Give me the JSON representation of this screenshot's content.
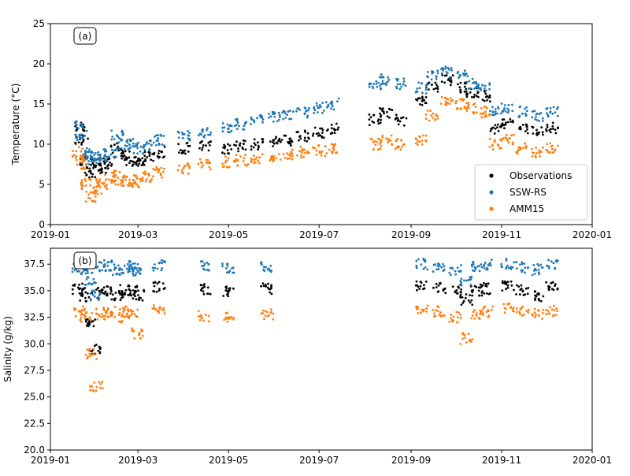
{
  "chart_data": [
    {
      "type": "scatter",
      "panel_label": "(a)",
      "ylabel": "Temperature (°C)",
      "xlabel": "",
      "xlim": [
        "2019-01-01",
        "2020-01-01"
      ],
      "ylim": [
        0,
        25
      ],
      "x_ticks": [
        "2019-01",
        "2019-03",
        "2019-05",
        "2019-07",
        "2019-09",
        "2019-11",
        "2020-01"
      ],
      "y_ticks": [
        0,
        5,
        10,
        15,
        20,
        25
      ],
      "legend": {
        "position": "lower-right",
        "entries": [
          "Observations",
          "SSW-RS",
          "AMM15"
        ]
      },
      "grid": false,
      "series": [
        {
          "name": "Observations",
          "color": "#000000",
          "points": [
            [
              "2019-01-20",
              12.0
            ],
            [
              "2019-01-22",
              10.5
            ],
            [
              "2019-01-25",
              8.0
            ],
            [
              "2019-01-28",
              6.5
            ],
            [
              "2019-02-01",
              7.5
            ],
            [
              "2019-02-05",
              7.0
            ],
            [
              "2019-02-10",
              8.0
            ],
            [
              "2019-02-15",
              9.5
            ],
            [
              "2019-02-20",
              8.5
            ],
            [
              "2019-02-25",
              8.0
            ],
            [
              "2019-03-01",
              7.8
            ],
            [
              "2019-03-08",
              8.5
            ],
            [
              "2019-03-15",
              9.0
            ],
            [
              "2019-04-01",
              9.5
            ],
            [
              "2019-04-15",
              9.8
            ],
            [
              "2019-05-01",
              9.5
            ],
            [
              "2019-05-10",
              9.8
            ],
            [
              "2019-05-20",
              10.0
            ],
            [
              "2019-06-01",
              10.3
            ],
            [
              "2019-06-10",
              10.5
            ],
            [
              "2019-06-20",
              11.0
            ],
            [
              "2019-07-01",
              11.5
            ],
            [
              "2019-07-10",
              12.0
            ],
            [
              "2019-08-08",
              13.0
            ],
            [
              "2019-08-15",
              14.0
            ],
            [
              "2019-08-25",
              13.0
            ],
            [
              "2019-09-08",
              15.5
            ],
            [
              "2019-09-15",
              17.0
            ],
            [
              "2019-09-25",
              18.0
            ],
            [
              "2019-10-05",
              17.0
            ],
            [
              "2019-10-12",
              16.5
            ],
            [
              "2019-10-20",
              16.0
            ],
            [
              "2019-10-28",
              12.0
            ],
            [
              "2019-11-05",
              12.5
            ],
            [
              "2019-11-15",
              12.0
            ],
            [
              "2019-11-25",
              11.5
            ],
            [
              "2019-12-05",
              12.0
            ]
          ]
        },
        {
          "name": "SSW-RS",
          "color": "#1f77b4",
          "points": [
            [
              "2019-01-20",
              12.5
            ],
            [
              "2019-01-22",
              11.0
            ],
            [
              "2019-01-25",
              9.0
            ],
            [
              "2019-01-28",
              8.0
            ],
            [
              "2019-02-01",
              8.5
            ],
            [
              "2019-02-05",
              8.5
            ],
            [
              "2019-02-10",
              9.0
            ],
            [
              "2019-02-15",
              11.0
            ],
            [
              "2019-02-20",
              10.0
            ],
            [
              "2019-02-25",
              10.0
            ],
            [
              "2019-03-01",
              9.5
            ],
            [
              "2019-03-08",
              9.8
            ],
            [
              "2019-03-15",
              10.5
            ],
            [
              "2019-04-01",
              11.0
            ],
            [
              "2019-04-15",
              11.5
            ],
            [
              "2019-05-01",
              12.0
            ],
            [
              "2019-05-10",
              12.5
            ],
            [
              "2019-05-20",
              13.0
            ],
            [
              "2019-06-01",
              13.5
            ],
            [
              "2019-06-10",
              13.8
            ],
            [
              "2019-06-20",
              14.0
            ],
            [
              "2019-07-01",
              14.5
            ],
            [
              "2019-07-10",
              15.0
            ],
            [
              "2019-08-08",
              17.5
            ],
            [
              "2019-08-15",
              18.0
            ],
            [
              "2019-08-25",
              17.5
            ],
            [
              "2019-09-08",
              17.0
            ],
            [
              "2019-09-15",
              18.5
            ],
            [
              "2019-09-25",
              19.0
            ],
            [
              "2019-10-05",
              18.5
            ],
            [
              "2019-10-12",
              17.5
            ],
            [
              "2019-10-20",
              17.0
            ],
            [
              "2019-10-28",
              14.0
            ],
            [
              "2019-11-05",
              14.5
            ],
            [
              "2019-11-15",
              14.0
            ],
            [
              "2019-11-25",
              13.5
            ],
            [
              "2019-12-05",
              14.0
            ]
          ]
        },
        {
          "name": "AMM15",
          "color": "#ff7f0e",
          "points": [
            [
              "2019-01-20",
              9.0
            ],
            [
              "2019-01-22",
              7.5
            ],
            [
              "2019-01-25",
              5.0
            ],
            [
              "2019-01-28",
              3.5
            ],
            [
              "2019-02-01",
              4.5
            ],
            [
              "2019-02-05",
              5.0
            ],
            [
              "2019-02-10",
              5.5
            ],
            [
              "2019-02-15",
              6.0
            ],
            [
              "2019-02-20",
              5.5
            ],
            [
              "2019-02-25",
              5.5
            ],
            [
              "2019-03-01",
              5.3
            ],
            [
              "2019-03-08",
              6.0
            ],
            [
              "2019-03-15",
              6.5
            ],
            [
              "2019-04-01",
              7.0
            ],
            [
              "2019-04-15",
              7.5
            ],
            [
              "2019-05-01",
              7.8
            ],
            [
              "2019-05-10",
              8.0
            ],
            [
              "2019-05-20",
              8.3
            ],
            [
              "2019-06-01",
              8.5
            ],
            [
              "2019-06-10",
              8.8
            ],
            [
              "2019-06-20",
              9.0
            ],
            [
              "2019-07-01",
              9.2
            ],
            [
              "2019-07-10",
              9.5
            ],
            [
              "2019-08-08",
              10.0
            ],
            [
              "2019-08-15",
              10.5
            ],
            [
              "2019-08-25",
              10.0
            ],
            [
              "2019-09-08",
              10.5
            ],
            [
              "2019-09-15",
              13.5
            ],
            [
              "2019-09-25",
              15.5
            ],
            [
              "2019-10-05",
              15.0
            ],
            [
              "2019-10-12",
              14.5
            ],
            [
              "2019-10-20",
              14.0
            ],
            [
              "2019-10-28",
              10.0
            ],
            [
              "2019-11-05",
              10.5
            ],
            [
              "2019-11-15",
              9.5
            ],
            [
              "2019-11-25",
              9.0
            ],
            [
              "2019-12-05",
              9.5
            ]
          ]
        }
      ]
    },
    {
      "type": "scatter",
      "panel_label": "(b)",
      "ylabel": "Salinity (g/kg)",
      "xlabel": "",
      "xlim": [
        "2019-01-01",
        "2020-01-01"
      ],
      "ylim": [
        20.0,
        39.0
      ],
      "x_ticks": [
        "2019-01",
        "2019-03",
        "2019-05",
        "2019-07",
        "2019-09",
        "2019-11",
        "2020-01"
      ],
      "y_ticks": [
        "20.0",
        "22.5",
        "25.0",
        "27.5",
        "30.0",
        "32.5",
        "35.0",
        "37.5"
      ],
      "grid": false,
      "series": [
        {
          "name": "Observations",
          "color": "#000000",
          "points": [
            [
              "2019-01-20",
              35.2
            ],
            [
              "2019-01-25",
              34.5
            ],
            [
              "2019-01-28",
              32.0
            ],
            [
              "2019-02-01",
              29.5
            ],
            [
              "2019-02-05",
              34.8
            ],
            [
              "2019-02-10",
              35.0
            ],
            [
              "2019-02-15",
              34.5
            ],
            [
              "2019-02-20",
              35.1
            ],
            [
              "2019-02-25",
              35.0
            ],
            [
              "2019-03-01",
              34.6
            ],
            [
              "2019-03-15",
              35.4
            ],
            [
              "2019-04-15",
              35.2
            ],
            [
              "2019-05-01",
              35.0
            ],
            [
              "2019-05-27",
              35.2
            ],
            [
              "2019-09-08",
              35.4
            ],
            [
              "2019-09-20",
              35.3
            ],
            [
              "2019-10-01",
              35.0
            ],
            [
              "2019-10-08",
              34.2
            ],
            [
              "2019-10-15",
              35.0
            ],
            [
              "2019-10-22",
              35.2
            ],
            [
              "2019-11-05",
              35.5
            ],
            [
              "2019-11-15",
              35.0
            ],
            [
              "2019-11-25",
              34.5
            ],
            [
              "2019-12-05",
              35.3
            ]
          ]
        },
        {
          "name": "SSW-RS",
          "color": "#1f77b4",
          "points": [
            [
              "2019-01-20",
              37.2
            ],
            [
              "2019-01-25",
              37.0
            ],
            [
              "2019-01-28",
              36.0
            ],
            [
              "2019-02-01",
              34.5
            ],
            [
              "2019-02-05",
              37.3
            ],
            [
              "2019-02-10",
              37.4
            ],
            [
              "2019-02-15",
              37.0
            ],
            [
              "2019-02-20",
              37.3
            ],
            [
              "2019-02-25",
              37.1
            ],
            [
              "2019-03-01",
              36.8
            ],
            [
              "2019-03-15",
              37.4
            ],
            [
              "2019-04-15",
              37.3
            ],
            [
              "2019-05-01",
              37.2
            ],
            [
              "2019-05-27",
              37.2
            ],
            [
              "2019-09-08",
              37.5
            ],
            [
              "2019-09-20",
              37.3
            ],
            [
              "2019-10-01",
              37.0
            ],
            [
              "2019-10-08",
              36.0
            ],
            [
              "2019-10-15",
              37.2
            ],
            [
              "2019-10-22",
              37.4
            ],
            [
              "2019-11-05",
              37.5
            ],
            [
              "2019-11-15",
              37.2
            ],
            [
              "2019-11-25",
              37.0
            ],
            [
              "2019-12-05",
              37.4
            ]
          ]
        },
        {
          "name": "AMM15",
          "color": "#ff7f0e",
          "points": [
            [
              "2019-01-20",
              33.0
            ],
            [
              "2019-01-25",
              32.5
            ],
            [
              "2019-01-28",
              29.0
            ],
            [
              "2019-02-01",
              26.0
            ],
            [
              "2019-02-05",
              32.8
            ],
            [
              "2019-02-10",
              33.0
            ],
            [
              "2019-02-15",
              32.5
            ],
            [
              "2019-02-20",
              33.0
            ],
            [
              "2019-02-25",
              32.8
            ],
            [
              "2019-03-01",
              31.0
            ],
            [
              "2019-03-15",
              33.2
            ],
            [
              "2019-04-15",
              32.6
            ],
            [
              "2019-05-01",
              32.4
            ],
            [
              "2019-05-27",
              32.8
            ],
            [
              "2019-09-08",
              33.2
            ],
            [
              "2019-09-20",
              33.1
            ],
            [
              "2019-10-01",
              32.5
            ],
            [
              "2019-10-08",
              30.5
            ],
            [
              "2019-10-15",
              32.8
            ],
            [
              "2019-10-22",
              33.0
            ],
            [
              "2019-11-05",
              33.3
            ],
            [
              "2019-11-15",
              33.0
            ],
            [
              "2019-11-25",
              32.8
            ],
            [
              "2019-12-05",
              33.1
            ]
          ]
        }
      ]
    }
  ]
}
